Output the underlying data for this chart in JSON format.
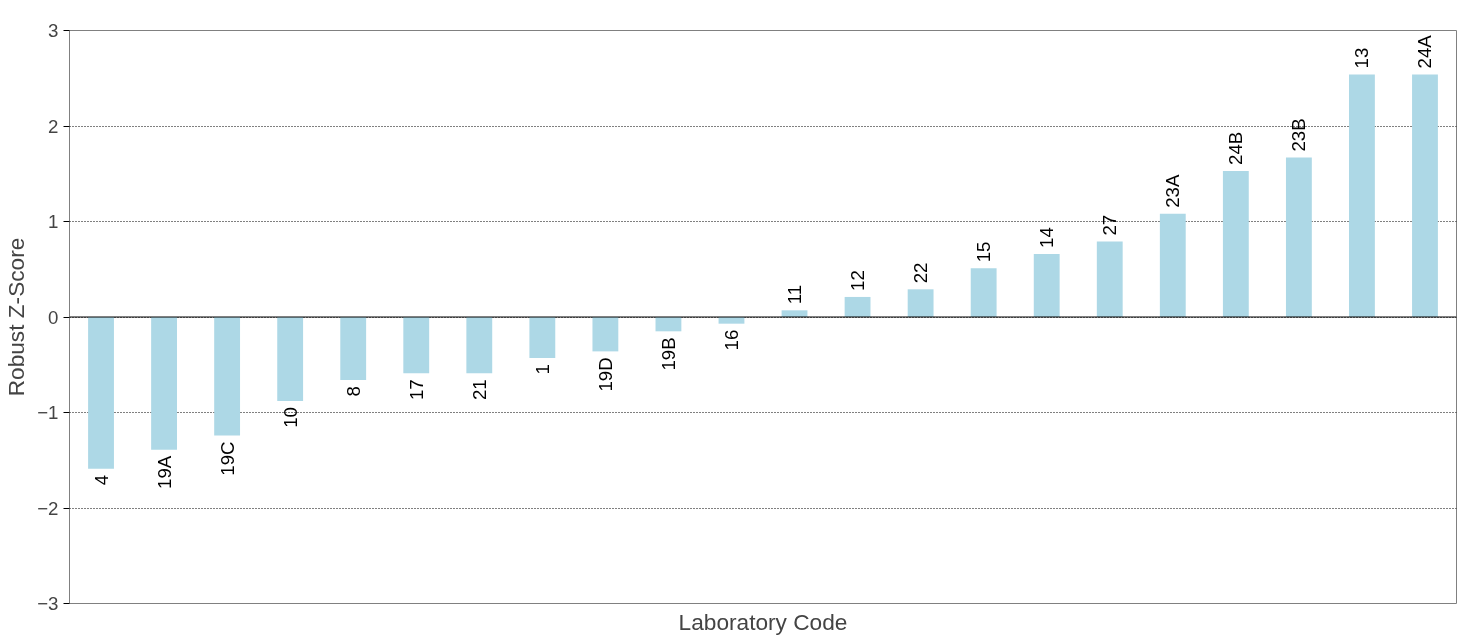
{
  "chart_data": {
    "type": "bar",
    "xlabel": "Laboratory Code",
    "ylabel": "Robust Z-Score",
    "categories": [
      "4",
      "19A",
      "19C",
      "10",
      "8",
      "17",
      "21",
      "1",
      "19D",
      "19B",
      "16",
      "11",
      "12",
      "22",
      "15",
      "14",
      "27",
      "23A",
      "24B",
      "23B",
      "13",
      "24A"
    ],
    "values": [
      -1.59,
      -1.39,
      -1.24,
      -0.88,
      -0.66,
      -0.59,
      -0.59,
      -0.43,
      -0.36,
      -0.15,
      -0.07,
      0.07,
      0.21,
      0.29,
      0.51,
      0.66,
      0.79,
      1.08,
      1.53,
      1.67,
      2.54,
      2.54
    ],
    "color": "#add8e6",
    "ylim": [
      -3,
      3
    ],
    "yticks": [
      -3,
      -2,
      -1,
      0,
      1,
      2,
      3
    ],
    "grid": "y",
    "tick_labels": "y",
    "ref_lines": [
      {
        "axis": "y",
        "value": 0,
        "color": "#000000",
        "line_style": "solid"
      }
    ]
  }
}
